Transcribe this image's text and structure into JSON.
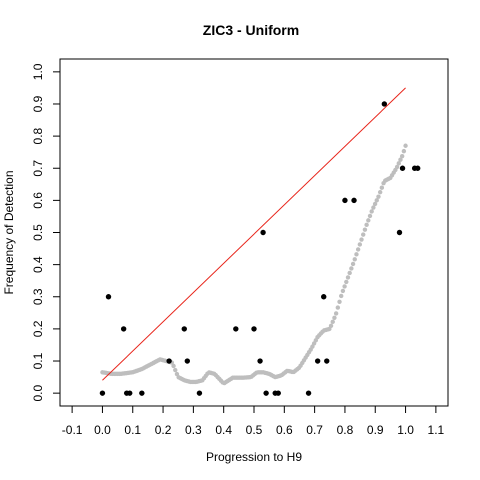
{
  "chart_data": {
    "type": "scatter",
    "title": "ZIC3 - Uniform",
    "xlabel": "Progression to H9",
    "ylabel": "Frequency of Detection",
    "xlim": [
      -0.14,
      1.14
    ],
    "ylim": [
      -0.04,
      1.04
    ],
    "x_ticks": [
      -0.1,
      0.0,
      0.1,
      0.2,
      0.3,
      0.4,
      0.5,
      0.6,
      0.7,
      0.8,
      0.9,
      1.0,
      1.1
    ],
    "x_tick_labels": [
      "-0.1",
      "0.0",
      "0.1",
      "0.2",
      "0.3",
      "0.4",
      "0.5",
      "0.6",
      "0.7",
      "0.8",
      "0.9",
      "1.0",
      "1.1"
    ],
    "y_ticks": [
      0.0,
      0.1,
      0.2,
      0.3,
      0.4,
      0.5,
      0.6,
      0.7,
      0.8,
      0.9,
      1.0
    ],
    "y_tick_labels": [
      "0.0",
      "0.1",
      "0.2",
      "0.3",
      "0.4",
      "0.5",
      "0.6",
      "0.7",
      "0.8",
      "0.9",
      "1.0"
    ],
    "grid": false,
    "colors": {
      "observed": "#000000",
      "smoothed": "#bebebe",
      "reference_line": "#e8241a",
      "axis": "#000000"
    },
    "reference_line": {
      "x": [
        0.0,
        1.0
      ],
      "y": [
        0.04,
        0.95
      ]
    },
    "smoothed_anchors": {
      "x": [
        0.0,
        0.03,
        0.06,
        0.1,
        0.13,
        0.15,
        0.17,
        0.19,
        0.21,
        0.23,
        0.25,
        0.27,
        0.29,
        0.31,
        0.33,
        0.35,
        0.37,
        0.4,
        0.43,
        0.46,
        0.49,
        0.51,
        0.53,
        0.55,
        0.57,
        0.59,
        0.61,
        0.63,
        0.65,
        0.67,
        0.69,
        0.71,
        0.73,
        0.75,
        0.77,
        0.79,
        0.81,
        0.83,
        0.85,
        0.87,
        0.89,
        0.91,
        0.93,
        0.95,
        0.97,
        0.99,
        1.0
      ],
      "y": [
        0.065,
        0.06,
        0.06,
        0.065,
        0.075,
        0.085,
        0.095,
        0.105,
        0.1,
        0.095,
        0.05,
        0.04,
        0.035,
        0.035,
        0.04,
        0.065,
        0.06,
        0.03,
        0.048,
        0.048,
        0.05,
        0.065,
        0.065,
        0.06,
        0.05,
        0.055,
        0.07,
        0.065,
        0.08,
        0.11,
        0.14,
        0.175,
        0.195,
        0.2,
        0.245,
        0.31,
        0.36,
        0.41,
        0.465,
        0.52,
        0.57,
        0.61,
        0.66,
        0.67,
        0.7,
        0.74,
        0.77
      ],
      "n_points": 180
    },
    "observed": {
      "x": [
        0.0,
        0.02,
        0.07,
        0.08,
        0.09,
        0.13,
        0.22,
        0.27,
        0.28,
        0.32,
        0.44,
        0.5,
        0.52,
        0.53,
        0.54,
        0.57,
        0.58,
        0.68,
        0.71,
        0.73,
        0.74,
        0.8,
        0.83,
        0.93,
        0.98,
        0.99,
        1.03,
        1.04
      ],
      "y": [
        0.0,
        0.3,
        0.2,
        0.0,
        0.0,
        0.0,
        0.1,
        0.2,
        0.1,
        0.0,
        0.2,
        0.2,
        0.1,
        0.5,
        0.0,
        0.0,
        0.0,
        0.0,
        0.1,
        0.3,
        0.1,
        0.6,
        0.6,
        0.9,
        0.5,
        0.7,
        0.7,
        0.7
      ]
    }
  }
}
